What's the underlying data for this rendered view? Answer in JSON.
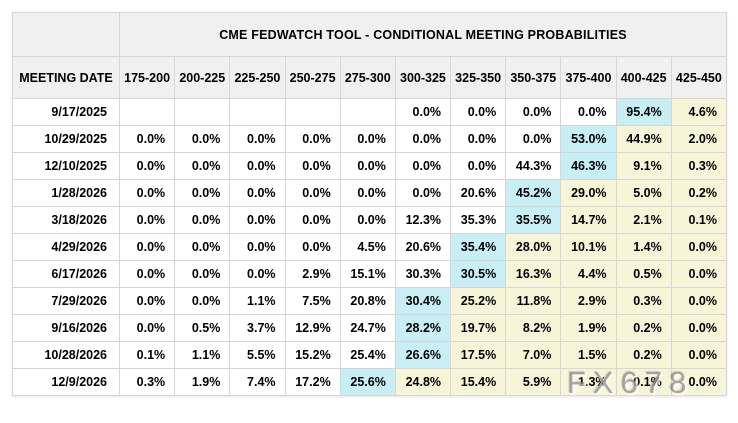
{
  "chart_data": {
    "type": "table",
    "title": "CME FEDWATCH TOOL - CONDITIONAL MEETING PROBABILITIES",
    "row_header": "MEETING DATE",
    "columns": [
      "175-200",
      "200-225",
      "225-250",
      "250-275",
      "275-300",
      "300-325",
      "325-350",
      "350-375",
      "375-400",
      "400-425",
      "425-450"
    ],
    "rows": [
      {
        "date": "9/17/2025",
        "values": [
          "",
          "",
          "",
          "",
          "",
          "0.0%",
          "0.0%",
          "0.0%",
          "0.0%",
          "95.4%",
          "4.6%"
        ],
        "styles": [
          "e",
          "e",
          "e",
          "e",
          "e",
          "w",
          "w",
          "w",
          "w",
          "c",
          "y"
        ]
      },
      {
        "date": "10/29/2025",
        "values": [
          "0.0%",
          "0.0%",
          "0.0%",
          "0.0%",
          "0.0%",
          "0.0%",
          "0.0%",
          "0.0%",
          "53.0%",
          "44.9%",
          "2.0%"
        ],
        "styles": [
          "w",
          "w",
          "w",
          "w",
          "w",
          "w",
          "w",
          "w",
          "c",
          "y",
          "y"
        ]
      },
      {
        "date": "12/10/2025",
        "values": [
          "0.0%",
          "0.0%",
          "0.0%",
          "0.0%",
          "0.0%",
          "0.0%",
          "0.0%",
          "44.3%",
          "46.3%",
          "9.1%",
          "0.3%"
        ],
        "styles": [
          "w",
          "w",
          "w",
          "w",
          "w",
          "w",
          "w",
          "w",
          "c",
          "y",
          "y"
        ]
      },
      {
        "date": "1/28/2026",
        "values": [
          "0.0%",
          "0.0%",
          "0.0%",
          "0.0%",
          "0.0%",
          "0.0%",
          "20.6%",
          "45.2%",
          "29.0%",
          "5.0%",
          "0.2%"
        ],
        "styles": [
          "w",
          "w",
          "w",
          "w",
          "w",
          "w",
          "w",
          "c",
          "y",
          "y",
          "y"
        ]
      },
      {
        "date": "3/18/2026",
        "values": [
          "0.0%",
          "0.0%",
          "0.0%",
          "0.0%",
          "0.0%",
          "12.3%",
          "35.3%",
          "35.5%",
          "14.7%",
          "2.1%",
          "0.1%"
        ],
        "styles": [
          "w",
          "w",
          "w",
          "w",
          "w",
          "w",
          "w",
          "c",
          "y",
          "y",
          "y"
        ]
      },
      {
        "date": "4/29/2026",
        "values": [
          "0.0%",
          "0.0%",
          "0.0%",
          "0.0%",
          "4.5%",
          "20.6%",
          "35.4%",
          "28.0%",
          "10.1%",
          "1.4%",
          "0.0%"
        ],
        "styles": [
          "w",
          "w",
          "w",
          "w",
          "w",
          "w",
          "c",
          "y",
          "y",
          "y",
          "y"
        ]
      },
      {
        "date": "6/17/2026",
        "values": [
          "0.0%",
          "0.0%",
          "0.0%",
          "2.9%",
          "15.1%",
          "30.3%",
          "30.5%",
          "16.3%",
          "4.4%",
          "0.5%",
          "0.0%"
        ],
        "styles": [
          "w",
          "w",
          "w",
          "w",
          "w",
          "w",
          "c",
          "y",
          "y",
          "y",
          "y"
        ]
      },
      {
        "date": "7/29/2026",
        "values": [
          "0.0%",
          "0.0%",
          "1.1%",
          "7.5%",
          "20.8%",
          "30.4%",
          "25.2%",
          "11.8%",
          "2.9%",
          "0.3%",
          "0.0%"
        ],
        "styles": [
          "w",
          "w",
          "w",
          "w",
          "w",
          "c",
          "y",
          "y",
          "y",
          "y",
          "y"
        ]
      },
      {
        "date": "9/16/2026",
        "values": [
          "0.0%",
          "0.5%",
          "3.7%",
          "12.9%",
          "24.7%",
          "28.2%",
          "19.7%",
          "8.2%",
          "1.9%",
          "0.2%",
          "0.0%"
        ],
        "styles": [
          "w",
          "w",
          "w",
          "w",
          "w",
          "c",
          "y",
          "y",
          "y",
          "y",
          "y"
        ]
      },
      {
        "date": "10/28/2026",
        "values": [
          "0.1%",
          "1.1%",
          "5.5%",
          "15.2%",
          "25.4%",
          "26.6%",
          "17.5%",
          "7.0%",
          "1.5%",
          "0.2%",
          "0.0%"
        ],
        "styles": [
          "w",
          "w",
          "w",
          "w",
          "w",
          "c",
          "y",
          "y",
          "y",
          "y",
          "y"
        ]
      },
      {
        "date": "12/9/2026",
        "values": [
          "0.3%",
          "1.9%",
          "7.4%",
          "17.2%",
          "25.6%",
          "24.8%",
          "15.4%",
          "5.9%",
          "1.3%",
          "0.1%",
          "0.0%"
        ],
        "styles": [
          "w",
          "w",
          "w",
          "w",
          "c",
          "y",
          "y",
          "y",
          "y",
          "y",
          "y"
        ]
      }
    ],
    "layout": {
      "grid": true,
      "row_max_highlight": "cyan",
      "right_of_max_highlight": "yellow"
    }
  },
  "colors": {
    "max_cell": "#c8eef6",
    "tail_cell": "#f6f5d8",
    "header_bg": "#f0f0f0",
    "border": "#d6d6d6"
  },
  "watermark": {
    "text": "FX678"
  }
}
